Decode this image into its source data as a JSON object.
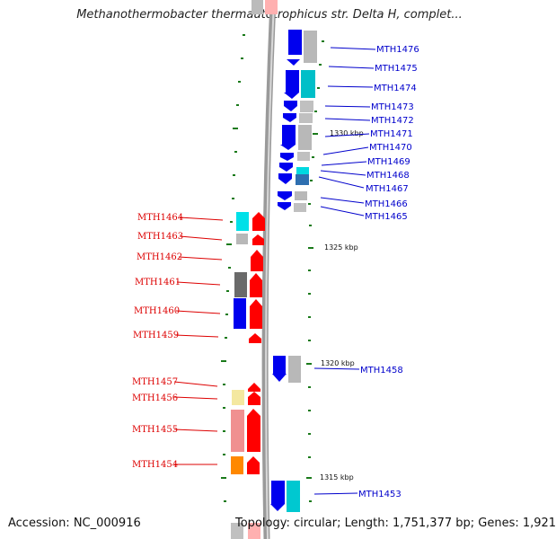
{
  "header": {
    "title": "Methanothermobacter thermautotrophicus str. Delta H, complet..."
  },
  "footer": {
    "accession": "Accession: NC_000916",
    "topology": "Topology: circular; Length: 1,751,377 bp; Genes: 1,921"
  },
  "kbp_labels": [
    "1330 kbp",
    "1325 kbp",
    "1320 kbp",
    "1315 kbp"
  ],
  "genes_left": [
    {
      "label": "MTH1464",
      "color": "#ff0000"
    },
    {
      "label": "MTH1463",
      "color": "#ff0000"
    },
    {
      "label": "MTH1462",
      "color": "#ff0000"
    },
    {
      "label": "MTH1461",
      "color": "#ff0000"
    },
    {
      "label": "MTH1460",
      "color": "#ff0000"
    },
    {
      "label": "MTH1459",
      "color": "#ff0000"
    },
    {
      "label": "MTH1457",
      "color": "#ff0000"
    },
    {
      "label": "MTH1456",
      "color": "#ff0000"
    },
    {
      "label": "MTH1455",
      "color": "#ff0000"
    },
    {
      "label": "MTH1454",
      "color": "#ff0000"
    }
  ],
  "genes_right": [
    {
      "label": "MTH1476",
      "color": "#0000ee"
    },
    {
      "label": "MTH1475",
      "color": "#0000ee"
    },
    {
      "label": "MTH1474",
      "color": "#0000ee"
    },
    {
      "label": "MTH1473",
      "color": "#0000ee"
    },
    {
      "label": "MTH1472",
      "color": "#0000ee"
    },
    {
      "label": "MTH1471",
      "color": "#0000ee"
    },
    {
      "label": "MTH1470",
      "color": "#0000ee"
    },
    {
      "label": "MTH1469",
      "color": "#0000ee"
    },
    {
      "label": "MTH1468",
      "color": "#0000ee"
    },
    {
      "label": "MTH1467",
      "color": "#0000ee"
    },
    {
      "label": "MTH1466",
      "color": "#0000ee"
    },
    {
      "label": "MTH1465",
      "color": "#0000ee"
    },
    {
      "label": "MTH1458",
      "color": "#0000ee"
    },
    {
      "label": "MTH1453",
      "color": "#0000ee"
    }
  ]
}
